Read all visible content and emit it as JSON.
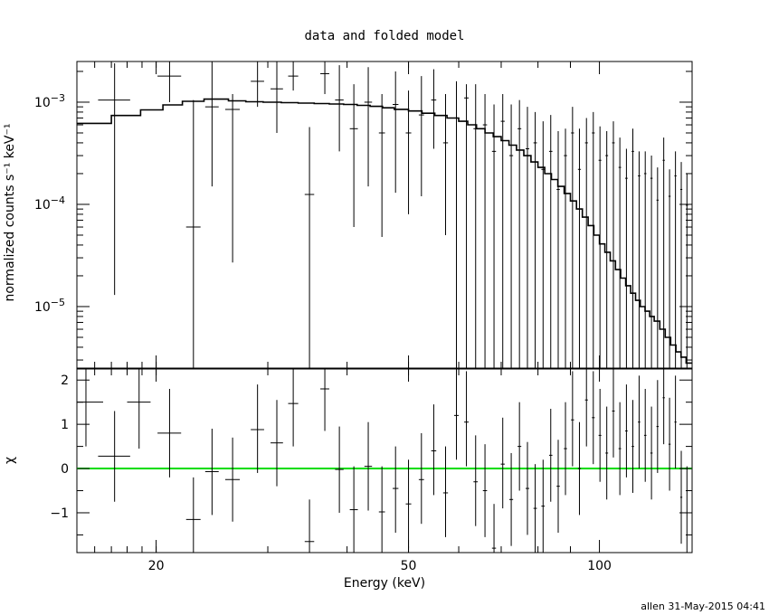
{
  "chart_data": {
    "title": "data and folded model",
    "footer": "allen 31-May-2015 04:41",
    "xlabel": "Energy (keV)",
    "xlim": [
      15,
      140
    ],
    "x_scale": "log",
    "x_ticks": [
      {
        "v": 20,
        "label": "20"
      },
      {
        "v": 50,
        "label": "50"
      },
      {
        "v": 100,
        "label": "100"
      }
    ],
    "colors": {
      "data": "#000000",
      "model": "#000000",
      "zero_line": "#00dd00"
    },
    "panels": [
      {
        "id": "spectrum",
        "type": "scatter",
        "ylabel": "normalized counts s⁻¹ keV⁻¹",
        "y_scale": "log",
        "ylim": [
          2.5e-06,
          0.0025
        ],
        "y_ticks": [
          {
            "v": 1e-05,
            "base": "10",
            "exp": "−5"
          },
          {
            "v": 0.0001,
            "base": "10",
            "exp": "−4"
          },
          {
            "v": 0.001,
            "base": "10",
            "exp": "−3"
          }
        ],
        "data": [
          [
            15.5,
            0.0025,
            1.0,
            0,
            0
          ],
          [
            17.2,
            0.00105,
            1.0,
            1.3e-05,
            0.0024
          ],
          [
            18.8,
            0.0025,
            0.8,
            0,
            0
          ],
          [
            21.0,
            0.0018,
            0.9,
            0.001,
            0.0025
          ],
          [
            22.9,
            6e-05,
            0.6,
            0,
            0.00105
          ],
          [
            24.5,
            0.0009,
            0.6,
            0.00015,
            0.0025
          ],
          [
            26.4,
            0.00085,
            0.7,
            2.7e-05,
            0.0012
          ],
          [
            28.9,
            0.0016,
            0.7,
            0.0009,
            0.0025
          ],
          [
            31.0,
            0.00135,
            0.7,
            0.0005,
            0.0025
          ],
          [
            32.9,
            0.0018,
            0.6,
            0.0013,
            0.0025
          ],
          [
            34.9,
            0.000125,
            0.6,
            0,
            0.00057
          ],
          [
            36.9,
            0.0019,
            0.6,
            0.0012,
            0.0025
          ],
          [
            38.9,
            0.00105,
            0.6,
            0.00033,
            0.0023
          ],
          [
            41.0,
            0.00055,
            0.6,
            6e-05,
            0.0015
          ],
          [
            43.2,
            0.001,
            0.6,
            0.00015,
            0.0022
          ],
          [
            45.4,
            0.0005,
            0.5,
            4.8e-05,
            0.0012
          ],
          [
            47.7,
            0.00095,
            0.5,
            0.00013,
            0.002
          ],
          [
            50.0,
            0.0005,
            0.5,
            8e-05,
            0.0013
          ],
          [
            52.4,
            0.00075,
            0.5,
            0.00012,
            0.0018
          ],
          [
            54.8,
            0.00105,
            0.5,
            0.00035,
            0.0021
          ],
          [
            57.2,
            0.0004,
            0.5,
            5e-05,
            0.0012
          ],
          [
            59.5,
            0.0007,
            0.5,
            0,
            0.0016
          ],
          [
            61.7,
            0.0011,
            0.5,
            0,
            0.0015
          ],
          [
            63.8,
            0.00055,
            0.5,
            0,
            0.0015
          ],
          [
            66.0,
            0.0006,
            0.5,
            0,
            0.0012
          ],
          [
            68.2,
            0.00033,
            0.5,
            0,
            0.00095
          ],
          [
            70.4,
            0.00065,
            0.5,
            0,
            0.0012
          ],
          [
            72.6,
            0.0003,
            0.5,
            0,
            0.00095
          ],
          [
            74.8,
            0.00055,
            0.5,
            0,
            0.00105
          ],
          [
            77.0,
            0.00035,
            0.5,
            0,
            0.0009
          ],
          [
            79.2,
            0.0004,
            0.5,
            0,
            0.0008
          ],
          [
            81.5,
            0.00022,
            0.5,
            0,
            0.00065
          ],
          [
            83.8,
            0.00033,
            0.5,
            0,
            0.00075
          ],
          [
            86.1,
            0.00014,
            0.5,
            0,
            0.00052
          ],
          [
            88.4,
            0.0003,
            0.5,
            0,
            0.00055
          ],
          [
            90.7,
            0.0005,
            0.5,
            0,
            0.0009
          ],
          [
            93.0,
            0.00022,
            0.5,
            0,
            0.00055
          ],
          [
            95.4,
            0.0004,
            0.5,
            0,
            0.0007
          ],
          [
            97.8,
            0.0005,
            0.5,
            0,
            0.0008
          ],
          [
            100.2,
            0.00027,
            0.5,
            0,
            0.00058
          ],
          [
            102.7,
            0.0003,
            0.5,
            0,
            0.00052
          ],
          [
            105.2,
            0.0004,
            0.5,
            0,
            0.00065
          ],
          [
            107.7,
            0.00023,
            0.5,
            0,
            0.00045
          ],
          [
            110.3,
            0.00018,
            0.5,
            0,
            0.00035
          ],
          [
            112.9,
            0.00033,
            0.5,
            0,
            0.00055
          ],
          [
            115.5,
            0.00019,
            0.5,
            0,
            0.00033
          ],
          [
            118.1,
            0.0002,
            0.5,
            0,
            0.00033
          ],
          [
            120.8,
            0.00018,
            0.5,
            0,
            0.0003
          ],
          [
            123.5,
            0.00011,
            0.5,
            0,
            0.00023
          ],
          [
            126.3,
            0.00027,
            0.5,
            0,
            0.00045
          ],
          [
            129.0,
            0.00012,
            0.5,
            0,
            0.00022
          ],
          [
            131.8,
            0.00019,
            0.5,
            0,
            0.00033
          ],
          [
            134.6,
            0.00014,
            0.5,
            0,
            0.00026
          ],
          [
            137.4,
            9.8e-05,
            0.5,
            0,
            0.0002
          ]
        ],
        "model_steps": [
          [
            15.0,
            0.00062
          ],
          [
            17.0,
            0.00074
          ],
          [
            18.9,
            0.00084
          ],
          [
            20.5,
            0.00094
          ],
          [
            22.0,
            0.00102
          ],
          [
            23.8,
            0.00107
          ],
          [
            26.0,
            0.00103
          ],
          [
            27.7,
            0.00101
          ],
          [
            29.5,
            0.001
          ],
          [
            31.5,
            0.00099
          ],
          [
            33.5,
            0.00098
          ],
          [
            35.5,
            0.00097
          ],
          [
            37.5,
            0.00096
          ],
          [
            39.5,
            0.00095
          ],
          [
            41.5,
            0.00093
          ],
          [
            43.5,
            0.00091
          ],
          [
            45.5,
            0.00088
          ],
          [
            47.5,
            0.00085
          ],
          [
            50.0,
            0.00082
          ],
          [
            52.5,
            0.00078
          ],
          [
            55.0,
            0.00074
          ],
          [
            57.5,
            0.0007
          ],
          [
            60.0,
            0.00065
          ],
          [
            62.0,
            0.0006
          ],
          [
            64.0,
            0.00055
          ],
          [
            66.0,
            0.0005
          ],
          [
            68.0,
            0.00046
          ],
          [
            70.0,
            0.00042
          ],
          [
            72.0,
            0.00038
          ],
          [
            74.0,
            0.00034
          ],
          [
            76.0,
            0.0003
          ],
          [
            78.0,
            0.00026
          ],
          [
            80.0,
            0.00023
          ],
          [
            82.0,
            0.0002
          ],
          [
            84.0,
            0.000175
          ],
          [
            86.0,
            0.00015
          ],
          [
            88.0,
            0.000128
          ],
          [
            90.0,
            0.000108
          ],
          [
            92.0,
            9e-05
          ],
          [
            94.0,
            7.5e-05
          ],
          [
            96.0,
            6.2e-05
          ],
          [
            98.0,
            5e-05
          ],
          [
            100.0,
            4.1e-05
          ],
          [
            102.0,
            3.4e-05
          ],
          [
            104.0,
            2.8e-05
          ],
          [
            106.0,
            2.3e-05
          ],
          [
            108.0,
            1.9e-05
          ],
          [
            110.0,
            1.6e-05
          ],
          [
            112.0,
            1.35e-05
          ],
          [
            114.0,
            1.15e-05
          ],
          [
            116.0,
            1e-05
          ],
          [
            118.0,
            9e-06
          ],
          [
            120.0,
            8e-06
          ],
          [
            122.0,
            7.2e-06
          ],
          [
            124.5,
            6e-06
          ],
          [
            127.0,
            5e-06
          ],
          [
            129.5,
            4.2e-06
          ],
          [
            132.0,
            3.6e-06
          ],
          [
            134.5,
            3.2e-06
          ],
          [
            137.0,
            2.8e-06
          ],
          [
            140.0,
            2.8e-06
          ]
        ]
      },
      {
        "id": "residuals",
        "type": "scatter",
        "ylabel": "χ",
        "y_scale": "linear",
        "ylim": [
          -1.9,
          2.25
        ],
        "y_ticks": [
          {
            "v": 2,
            "label": "2"
          },
          {
            "v": 1,
            "label": "1"
          },
          {
            "v": 0,
            "label": "0"
          },
          {
            "v": -1,
            "label": "−1"
          }
        ],
        "zero_line": 0,
        "data": [
          [
            15.5,
            1.5,
            1.0,
            0.5,
            2.25
          ],
          [
            17.2,
            0.28,
            1.0,
            -0.75,
            1.3
          ],
          [
            18.8,
            1.5,
            0.8,
            0.45,
            2.25
          ],
          [
            21.0,
            0.8,
            0.9,
            -0.2,
            1.8
          ],
          [
            22.9,
            -1.15,
            0.6,
            -1.9,
            -0.2
          ],
          [
            24.5,
            -0.07,
            0.6,
            -1.05,
            0.9
          ],
          [
            26.4,
            -0.25,
            0.7,
            -1.2,
            0.7
          ],
          [
            28.9,
            0.88,
            0.7,
            -0.1,
            1.9
          ],
          [
            31.0,
            0.58,
            0.7,
            -0.4,
            1.55
          ],
          [
            32.9,
            1.47,
            0.6,
            0.5,
            2.25
          ],
          [
            34.9,
            -1.65,
            0.6,
            -1.9,
            -0.7
          ],
          [
            36.9,
            1.8,
            0.6,
            0.85,
            2.25
          ],
          [
            38.9,
            -0.02,
            0.6,
            -1.0,
            0.95
          ],
          [
            41.0,
            -0.93,
            0.6,
            -1.9,
            0.05
          ],
          [
            43.2,
            0.05,
            0.6,
            -0.95,
            1.05
          ],
          [
            45.4,
            -0.98,
            0.5,
            -1.9,
            0.05
          ],
          [
            47.7,
            -0.45,
            0.5,
            -1.45,
            0.5
          ],
          [
            50.0,
            -0.8,
            0.5,
            -1.8,
            0.2
          ],
          [
            52.4,
            -0.25,
            0.5,
            -1.25,
            0.8
          ],
          [
            54.8,
            0.4,
            0.5,
            -0.6,
            1.45
          ],
          [
            57.2,
            -0.55,
            0.5,
            -1.55,
            0.5
          ],
          [
            59.5,
            1.2,
            0.5,
            0.2,
            2.25
          ],
          [
            61.7,
            1.05,
            0.5,
            0.05,
            2.2
          ],
          [
            63.8,
            -0.3,
            0.5,
            -1.3,
            0.75
          ],
          [
            66.0,
            -0.5,
            0.5,
            -1.55,
            0.55
          ],
          [
            68.2,
            -1.8,
            0.5,
            -1.9,
            -0.8
          ],
          [
            70.4,
            0.1,
            0.5,
            -0.9,
            1.15
          ],
          [
            72.6,
            -0.7,
            0.5,
            -1.75,
            0.35
          ],
          [
            74.8,
            0.5,
            0.5,
            -0.5,
            1.5
          ],
          [
            77.0,
            -0.45,
            0.5,
            -1.5,
            0.6
          ],
          [
            79.2,
            -0.9,
            0.5,
            -1.9,
            0.1
          ],
          [
            81.5,
            -0.85,
            0.5,
            -1.9,
            0.2
          ],
          [
            83.8,
            0.3,
            0.5,
            -0.75,
            1.35
          ],
          [
            86.1,
            -0.4,
            0.5,
            -1.45,
            0.65
          ],
          [
            88.4,
            0.45,
            0.5,
            -0.6,
            1.5
          ],
          [
            90.7,
            1.1,
            0.5,
            0.05,
            2.2
          ],
          [
            93.0,
            0.0,
            0.5,
            -1.05,
            1.05
          ],
          [
            95.4,
            1.55,
            0.5,
            0.5,
            2.25
          ],
          [
            97.8,
            1.15,
            0.5,
            0.1,
            2.2
          ],
          [
            100.2,
            0.75,
            0.5,
            -0.3,
            1.8
          ],
          [
            102.7,
            0.35,
            0.5,
            -0.7,
            1.4
          ],
          [
            105.2,
            1.3,
            0.5,
            0.25,
            2.25
          ],
          [
            107.7,
            0.45,
            0.5,
            -0.6,
            1.5
          ],
          [
            110.3,
            0.85,
            0.5,
            -0.2,
            1.9
          ],
          [
            112.9,
            0.5,
            0.5,
            -0.55,
            1.55
          ],
          [
            115.5,
            1.05,
            0.5,
            0.0,
            2.1
          ],
          [
            118.1,
            0.75,
            0.5,
            -0.3,
            1.8
          ],
          [
            120.8,
            0.35,
            0.5,
            -0.7,
            1.4
          ],
          [
            123.5,
            0.95,
            0.5,
            -0.1,
            2.0
          ],
          [
            126.3,
            1.6,
            0.5,
            0.55,
            2.25
          ],
          [
            129.0,
            0.55,
            0.5,
            -0.5,
            1.6
          ],
          [
            131.8,
            1.05,
            0.5,
            0.0,
            2.1
          ],
          [
            134.6,
            -0.65,
            0.5,
            -1.7,
            0.4
          ],
          [
            137.4,
            -1.0,
            0.5,
            -1.9,
            0.05
          ]
        ]
      }
    ]
  }
}
